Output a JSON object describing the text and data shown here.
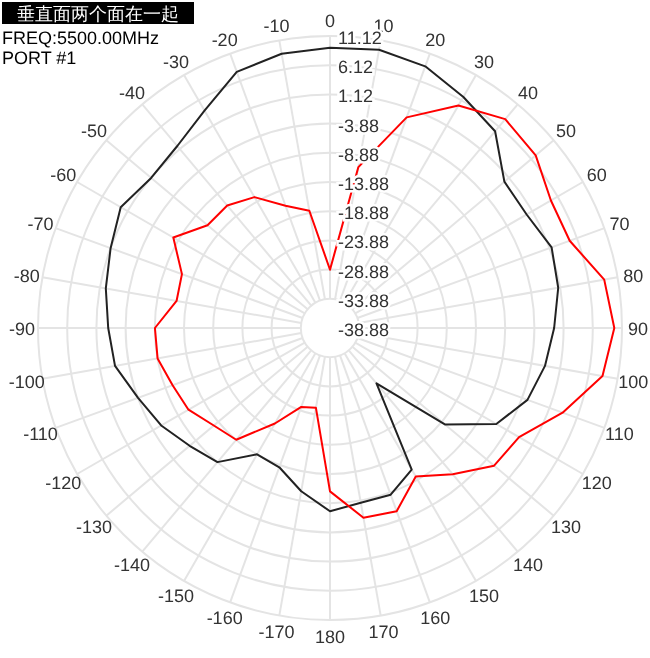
{
  "chart_data": {
    "type": "radar",
    "title": "垂直面两个面在一起",
    "annotations": [
      "FREQ:5500.00MHz",
      "PORT #1"
    ],
    "categories": [
      "0",
      "10",
      "20",
      "30",
      "40",
      "50",
      "60",
      "70",
      "80",
      "90",
      "100",
      "110",
      "120",
      "130",
      "140",
      "150",
      "160",
      "170",
      "180",
      "-170",
      "-160",
      "-150",
      "-140",
      "-130",
      "-120",
      "-110",
      "-100",
      "-90",
      "-80",
      "-70",
      "-60",
      "-50",
      "-40",
      "-30",
      "-20",
      "-10"
    ],
    "ylim": [
      -38.88,
      11.12
    ],
    "yticks": [
      -38.88,
      -33.88,
      -28.88,
      -23.88,
      -18.88,
      -13.88,
      -8.88,
      -3.88,
      1.12,
      6.12,
      11.12
    ],
    "grid": true,
    "series": [
      {
        "color": "#222222",
        "values": [
          9.1,
          9.5,
          8.8,
          6.8,
          5.1,
          0.1,
          0.0,
          1.5,
          0.8,
          -0.5,
          -1.5,
          -2.9,
          -6.0,
          -13.2,
          -26.5,
          -10.9,
          -8.5,
          -8.5,
          -7.5,
          -10.5,
          -13.5,
          -13.9,
          -8.9,
          -7.5,
          -5.5,
          -3.9,
          -1.5,
          -0.9,
          0.1,
          1.1,
          2.5,
          1.1,
          1.8,
          4.1,
          7.8,
          8.8
        ]
      },
      {
        "color": "#ff0000",
        "values": [
          -28.9,
          -10.9,
          -0.5,
          5.1,
          7.8,
          7.1,
          4.8,
          4.8,
          8.8,
          9.8,
          8.5,
          3.5,
          -1.5,
          -2.2,
          -6.2,
          -9.5,
          -5.5,
          -5.9,
          -10.9,
          -25.0,
          -24.5,
          -20.0,
          -13.9,
          -12.9,
          -10.9,
          -10.2,
          -8.9,
          -8.9,
          -12.2,
          -11.9,
          -7.9,
          -11.5,
          -11.5,
          -13.0,
          -16.6,
          -18.5
        ]
      }
    ]
  }
}
